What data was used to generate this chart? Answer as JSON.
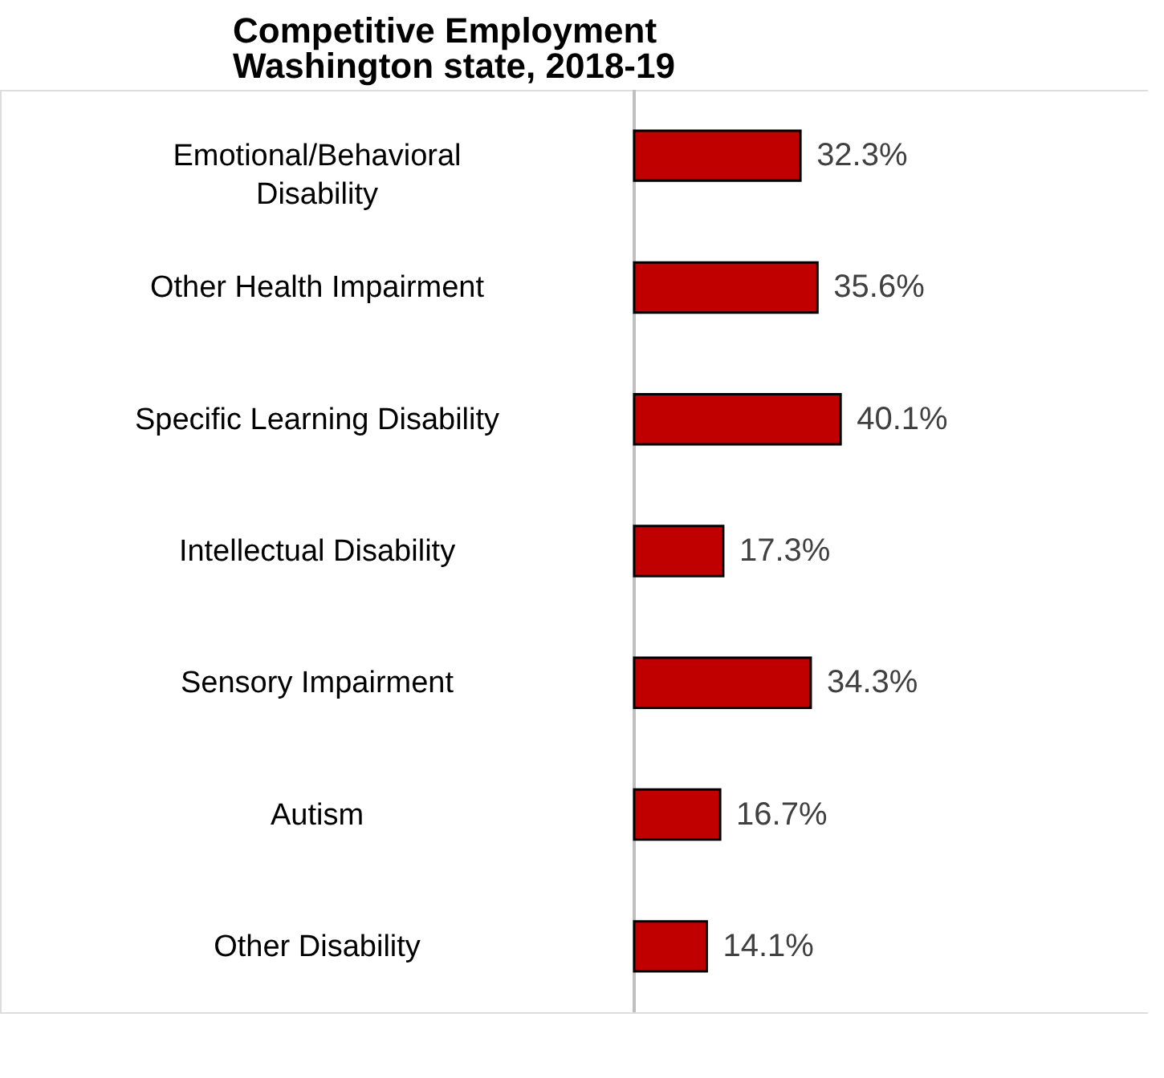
{
  "chart_data": {
    "type": "bar",
    "orientation": "horizontal",
    "title": "Competitive Employment",
    "subtitle": "Washington state, 2018-19",
    "categories": [
      "Emotional/Behavioral Disability",
      "Other Health Impairment",
      "Specific Learning Disability",
      "Intellectual Disability",
      "Sensory Impairment",
      "Autism",
      "Other Disability"
    ],
    "values": [
      32.3,
      35.6,
      40.1,
      17.3,
      34.3,
      16.7,
      14.1
    ],
    "value_labels": [
      "32.3%",
      "35.6%",
      "40.1%",
      "17.3%",
      "34.3%",
      "16.7%",
      "14.1%"
    ],
    "color": "#c00000"
  }
}
